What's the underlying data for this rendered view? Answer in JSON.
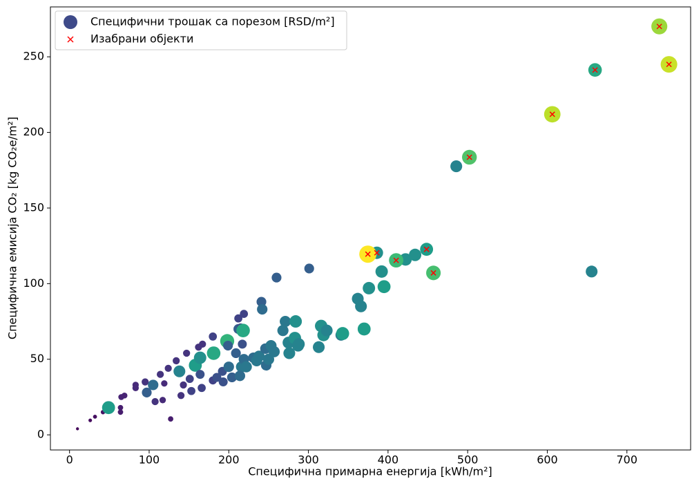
{
  "chart_data": {
    "type": "scatter",
    "xlabel": "Специфична примарна енергија [kWh/m²]",
    "ylabel": "Специфична емисија CO₂ [kg CO₂e/m²]",
    "xlim": [
      -24,
      780
    ],
    "ylim": [
      -10,
      283
    ],
    "xticks": [
      0,
      100,
      200,
      300,
      400,
      500,
      600,
      700
    ],
    "yticks": [
      0,
      50,
      100,
      150,
      200,
      250
    ],
    "colormap": "viridis",
    "legend": "upper left",
    "series": [
      {
        "name": "Специфични трошак са порезом [RSD/m²]",
        "color": "#3e4a89",
        "x": [
          10,
          26,
          32,
          42,
          49,
          64,
          64,
          65,
          69,
          83,
          83,
          95,
          97,
          105,
          107.5,
          117,
          114,
          119,
          124,
          127,
          134,
          138,
          140,
          143,
          147,
          151,
          153,
          158,
          162,
          164,
          164,
          167,
          166,
          180,
          180,
          181,
          185,
          192,
          193,
          198,
          199,
          200,
          204,
          209,
          212,
          212,
          215,
          218,
          219,
          216,
          214,
          217,
          219,
          222,
          231,
          235,
          238,
          241,
          242,
          246,
          247,
          250,
          253,
          257,
          260,
          268,
          271,
          275,
          276,
          284,
          283,
          287,
          288,
          301,
          313,
          316,
          319,
          323,
          341,
          343,
          362,
          366,
          370,
          376,
          392,
          395,
          422,
          434,
          485.7,
          655.7,
          740.7,
          752.8,
          660,
          606.3,
          502.2,
          386,
          374.7,
          410.2,
          448.4,
          457
        ],
        "values": [
          4,
          9.6,
          12,
          15,
          18,
          18,
          15,
          25,
          26,
          33,
          31,
          35,
          28,
          33,
          22,
          23,
          40,
          34,
          44,
          10.5,
          49,
          42,
          26,
          33,
          54,
          37,
          29,
          46,
          58,
          51,
          40,
          60,
          31,
          65,
          36,
          54,
          38,
          42,
          35,
          62,
          59,
          45,
          38,
          54,
          70,
          77,
          71,
          69,
          80,
          45,
          39,
          60,
          50,
          45,
          51,
          49,
          52,
          88,
          83,
          57,
          46,
          50,
          59,
          55,
          104,
          69,
          75,
          61,
          54,
          75,
          64,
          59,
          60,
          110,
          58,
          72,
          66,
          69,
          66,
          67,
          90,
          85,
          70,
          97,
          108,
          98,
          116,
          119,
          177.6,
          108,
          270.1,
          245,
          241.3,
          212,
          183.6,
          120.4,
          119.5,
          115.4,
          122.7,
          107.1
        ],
        "sizes": [
          2,
          3,
          4,
          5,
          55,
          8,
          8,
          10,
          10,
          12,
          12,
          15,
          30,
          35,
          15,
          12,
          15,
          12,
          15,
          8,
          15,
          45,
          15,
          15,
          15,
          20,
          20,
          55,
          15,
          50,
          25,
          15,
          20,
          20,
          20,
          60,
          25,
          25,
          25,
          65,
          30,
          35,
          30,
          30,
          30,
          20,
          20,
          60,
          20,
          40,
          35,
          25,
          35,
          40,
          35,
          40,
          40,
          30,
          35,
          35,
          35,
          40,
          40,
          40,
          30,
          40,
          40,
          45,
          45,
          50,
          50,
          45,
          45,
          30,
          45,
          50,
          50,
          45,
          40,
          55,
          45,
          45,
          55,
          50,
          50,
          55,
          50,
          50,
          45,
          45,
          85,
          92,
          60,
          90,
          72,
          50,
          100,
          68,
          55,
          70
        ]
      },
      {
        "name": "Изабрани објекти",
        "color": "#ff0000",
        "marker": "x",
        "x": [
          740.7,
          752.8,
          660,
          606.3,
          502.2,
          386,
          374.7,
          410.2,
          448.4,
          457
        ],
        "values": [
          270.1,
          245,
          241.3,
          212,
          183.6,
          120.4,
          119.5,
          115.4,
          122.7,
          107.1
        ]
      }
    ]
  }
}
